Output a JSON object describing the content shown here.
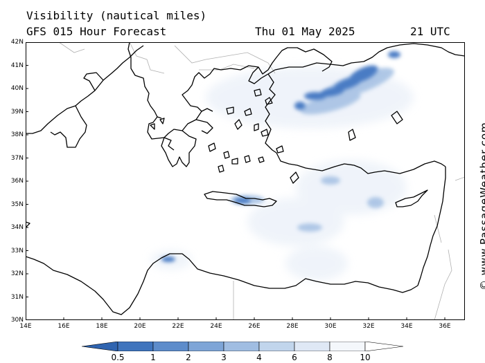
{
  "header": {
    "title": "Visibility (nautical miles)",
    "model": "GFS 015 Hour Forecast",
    "date": "Thu 01 May 2025",
    "time": "21 UTC"
  },
  "credit": "© www.PassageWeather.com",
  "axes": {
    "lat_labels": [
      "42N",
      "41N",
      "40N",
      "39N",
      "38N",
      "37N",
      "36N",
      "35N",
      "34N",
      "33N",
      "32N",
      "31N",
      "30N"
    ],
    "lon_labels": [
      "14E",
      "16E",
      "18E",
      "20E",
      "22E",
      "24E",
      "26E",
      "28E",
      "30E",
      "32E",
      "34E",
      "36E"
    ]
  },
  "colorbar": {
    "labels": [
      "0.5",
      "1",
      "2",
      "3",
      "4",
      "6",
      "8",
      "10"
    ],
    "colors": [
      "#3f74bd",
      "#5d8ccb",
      "#7ea5d7",
      "#a0bde2",
      "#c1d5ec",
      "#dfe8f5",
      "#f4f7fb"
    ]
  },
  "colors": {
    "coastline": "#000000",
    "border": "#aaaaaa",
    "low_visibility": "#4a7cc4",
    "moderate_visibility": "#9ab8df",
    "light_haze": "#dbe6f3"
  }
}
